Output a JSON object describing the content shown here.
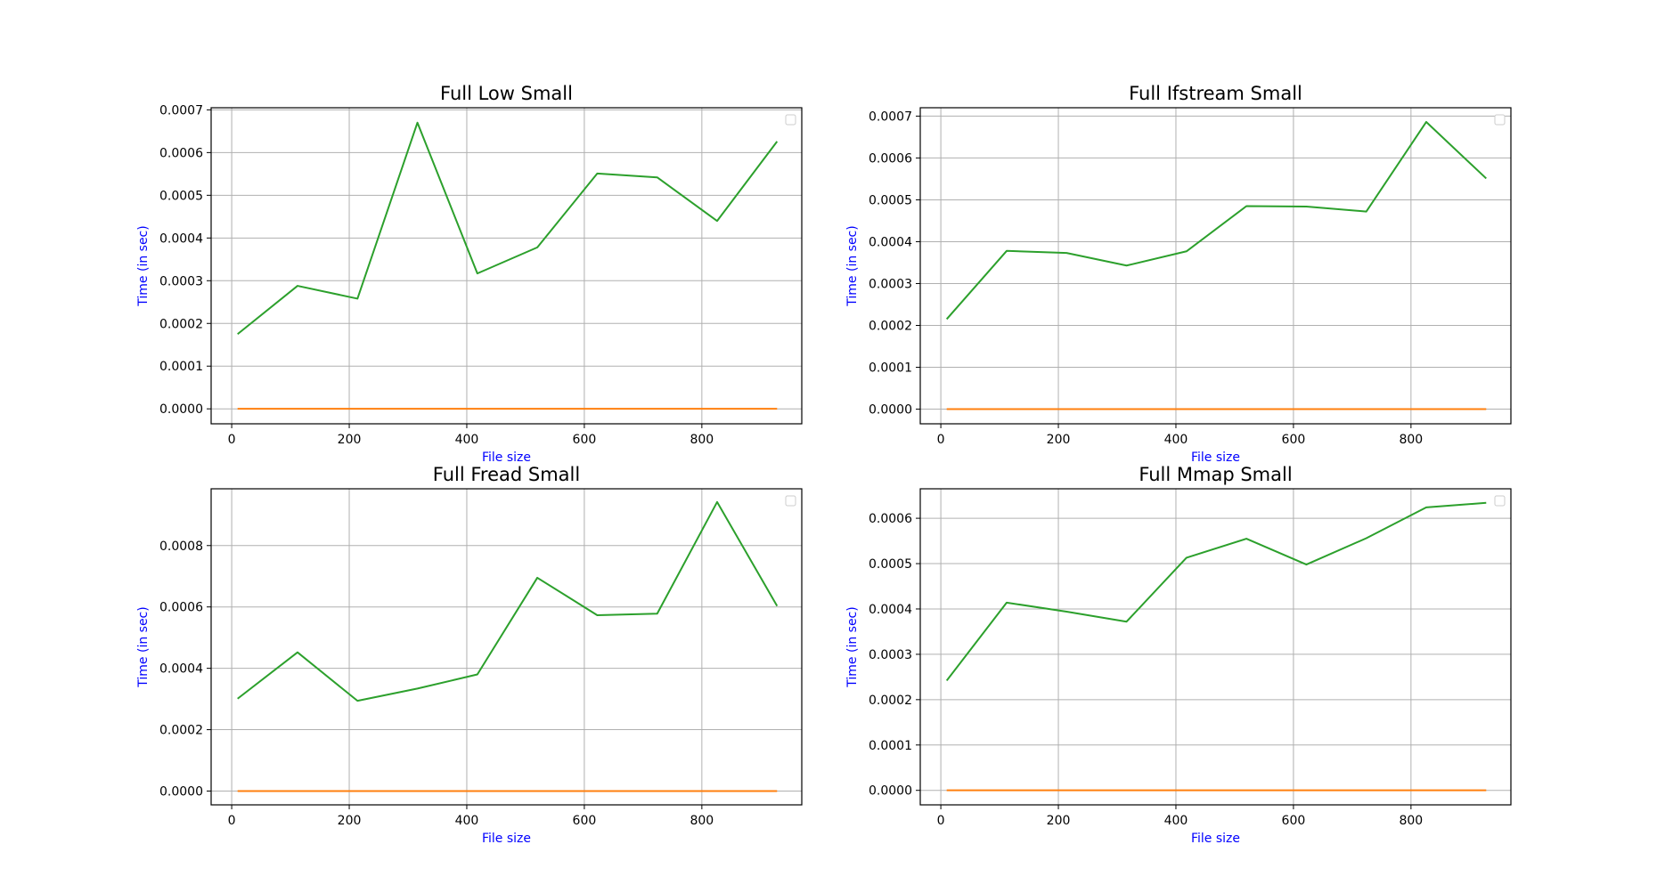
{
  "colors": {
    "series_green": "#2ca02c",
    "series_orange": "#ff7f0e",
    "axis_label": "#0000ff",
    "grid": "#b0b0b0"
  },
  "chart_data": [
    {
      "type": "line",
      "title": "Full Low Small",
      "xlabel": "File size",
      "ylabel": "Time (in sec)",
      "grid": true,
      "legend": "top-right (empty)",
      "xlim": [
        -35,
        970
      ],
      "ylim": [
        -3.5e-05,
        0.000705
      ],
      "xticks": [
        0,
        200,
        400,
        600,
        800
      ],
      "xtick_labels": [
        "0",
        "200",
        "400",
        "600",
        "800"
      ],
      "yticks": [
        0,
        0.0001,
        0.0002,
        0.0003,
        0.0004,
        0.0005,
        0.0006,
        0.0007
      ],
      "ytick_labels": [
        "0.0000",
        "0.0001",
        "0.0002",
        "0.0003",
        "0.0004",
        "0.0005",
        "0.0006",
        "0.0007"
      ],
      "x": [
        10,
        112,
        214,
        316,
        418,
        520,
        622,
        724,
        826,
        928
      ],
      "series": [
        {
          "values": [
            0.000175,
            0.000288,
            0.000258,
            0.00067,
            0.000317,
            0.000378,
            0.000551,
            0.000542,
            0.00044,
            0.000626
          ],
          "color": "#2ca02c"
        },
        {
          "values": [
            1e-07,
            1e-07,
            1e-07,
            1e-07,
            1e-07,
            1e-07,
            1e-07,
            1e-07,
            1e-07,
            1e-07
          ],
          "color": "#ff7f0e"
        }
      ]
    },
    {
      "type": "line",
      "title": "Full Ifstream Small",
      "xlabel": "File size",
      "ylabel": "Time (in sec)",
      "grid": true,
      "legend": "top-right (empty)",
      "xlim": [
        -35,
        970
      ],
      "ylim": [
        -3.5e-05,
        0.00072
      ],
      "xticks": [
        0,
        200,
        400,
        600,
        800
      ],
      "xtick_labels": [
        "0",
        "200",
        "400",
        "600",
        "800"
      ],
      "yticks": [
        0,
        0.0001,
        0.0002,
        0.0003,
        0.0004,
        0.0005,
        0.0006,
        0.0007
      ],
      "ytick_labels": [
        "0.0000",
        "0.0001",
        "0.0002",
        "0.0003",
        "0.0004",
        "0.0005",
        "0.0006",
        "0.0007"
      ],
      "x": [
        10,
        112,
        214,
        316,
        418,
        520,
        622,
        724,
        826,
        928
      ],
      "series": [
        {
          "values": [
            0.000215,
            0.000378,
            0.000373,
            0.000343,
            0.000377,
            0.000485,
            0.000484,
            0.000472,
            0.000686,
            0.000551
          ],
          "color": "#2ca02c"
        },
        {
          "values": [
            1e-07,
            1e-07,
            1e-07,
            1e-07,
            1e-07,
            1e-07,
            1e-07,
            1e-07,
            1e-07,
            1e-07
          ],
          "color": "#ff7f0e"
        }
      ]
    },
    {
      "type": "line",
      "title": "Full Fread Small",
      "xlabel": "File size",
      "ylabel": "Time (in sec)",
      "grid": true,
      "legend": "top-right (empty)",
      "xlim": [
        -35,
        970
      ],
      "ylim": [
        -4.5e-05,
        0.000985
      ],
      "xticks": [
        0,
        200,
        400,
        600,
        800
      ],
      "xtick_labels": [
        "0",
        "200",
        "400",
        "600",
        "800"
      ],
      "yticks": [
        0,
        0.0002,
        0.0004,
        0.0006,
        0.0008
      ],
      "ytick_labels": [
        "0.0000",
        "0.0002",
        "0.0004",
        "0.0006",
        "0.0008"
      ],
      "x": [
        10,
        112,
        214,
        316,
        418,
        520,
        622,
        724,
        826,
        928
      ],
      "series": [
        {
          "values": [
            0.000301,
            0.000452,
            0.000294,
            0.000334,
            0.00038,
            0.000695,
            0.000573,
            0.000578,
            0.000942,
            0.000603
          ],
          "color": "#2ca02c"
        },
        {
          "values": [
            1e-07,
            1e-07,
            1e-07,
            1e-07,
            1e-07,
            1e-07,
            1e-07,
            1e-07,
            1e-07,
            1e-07
          ],
          "color": "#ff7f0e"
        }
      ]
    },
    {
      "type": "line",
      "title": "Full Mmap Small",
      "xlabel": "File size",
      "ylabel": "Time (in sec)",
      "grid": true,
      "legend": "top-right (empty)",
      "xlim": [
        -35,
        970
      ],
      "ylim": [
        -3.2e-05,
        0.000665
      ],
      "xticks": [
        0,
        200,
        400,
        600,
        800
      ],
      "xtick_labels": [
        "0",
        "200",
        "400",
        "600",
        "800"
      ],
      "yticks": [
        0,
        0.0001,
        0.0002,
        0.0003,
        0.0004,
        0.0005,
        0.0006
      ],
      "ytick_labels": [
        "0.0000",
        "0.0001",
        "0.0002",
        "0.0003",
        "0.0004",
        "0.0005",
        "0.0006"
      ],
      "x": [
        10,
        112,
        214,
        316,
        418,
        520,
        622,
        724,
        826,
        928
      ],
      "series": [
        {
          "values": [
            0.000242,
            0.000414,
            0.000394,
            0.000372,
            0.000513,
            0.000555,
            0.000498,
            0.000556,
            0.000624,
            0.000634
          ],
          "color": "#2ca02c"
        },
        {
          "values": [
            1e-07,
            1e-07,
            1e-07,
            1e-07,
            1e-07,
            1e-07,
            1e-07,
            1e-07,
            1e-07,
            1e-07
          ],
          "color": "#ff7f0e"
        }
      ]
    }
  ]
}
